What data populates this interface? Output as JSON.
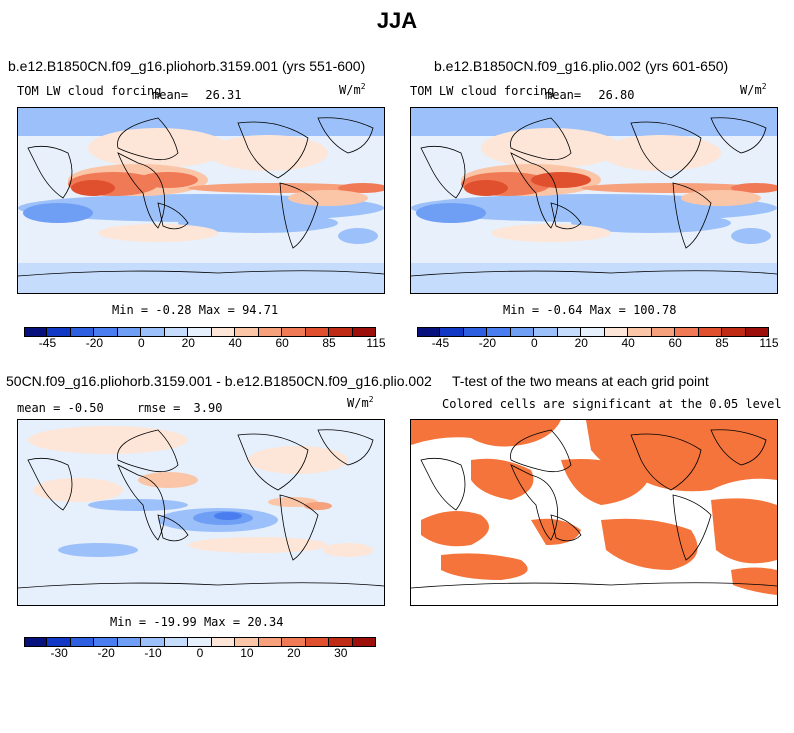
{
  "title": "JJA",
  "panels": {
    "top_left": {
      "title": "b.e12.B1850CN.f09_g16.pliohorb.3159.001 (yrs 551-600)",
      "variable": "TOM LW cloud forcing",
      "mean_label": "mean=",
      "mean_value": "26.31",
      "units": "W/m",
      "units_exp": "2",
      "min_label": "Min =",
      "min_value": "-0.28",
      "max_label": "Max =",
      "max_value": "94.71"
    },
    "top_right": {
      "title": "b.e12.B1850CN.f09_g16.plio.002 (yrs 601-650)",
      "variable": "TOM LW cloud forcing",
      "mean_label": "mean=",
      "mean_value": "26.80",
      "units": "W/m",
      "units_exp": "2",
      "min_label": "Min =",
      "min_value": "-0.64",
      "max_label": "Max =",
      "max_value": "100.78"
    },
    "bottom_left": {
      "title": "50CN.f09_g16.pliohorb.3159.001 - b.e12.B1850CN.f09_g16.plio.002",
      "mean_label": "mean =",
      "mean_value": "-0.50",
      "rmse_label": "rmse =",
      "rmse_value": "3.90",
      "units": "W/m",
      "units_exp": "2",
      "min_label": "Min =",
      "min_value": "-19.99",
      "max_label": "Max =",
      "max_value": "20.34"
    },
    "bottom_right": {
      "title": "T-test of the two means at each grid point",
      "subtitle": "Colored cells are significant at the 0.05 level",
      "significant_color": "#f4743b"
    }
  },
  "colorbars": {
    "top": {
      "colors": [
        "#08127d",
        "#1238c6",
        "#2d5fe0",
        "#4a7df0",
        "#6f9ef5",
        "#9cc0fa",
        "#c6dcfc",
        "#e6effc",
        "#fde6d7",
        "#fbc6a8",
        "#f7a07c",
        "#f07a55",
        "#e0502e",
        "#c02b15",
        "#9c0f0b"
      ],
      "tick_labels": [
        "-45",
        "-20",
        "0",
        "20",
        "40",
        "60",
        "85",
        "115"
      ]
    },
    "bottom": {
      "colors": [
        "#08127d",
        "#1238c6",
        "#2d5fe0",
        "#4a7df0",
        "#6f9ef5",
        "#9cc0fa",
        "#c6dcfc",
        "#e6effc",
        "#fde6d7",
        "#fbc6a8",
        "#f7a07c",
        "#f07a55",
        "#e0502e",
        "#c02b15",
        "#9c0f0b"
      ],
      "tick_labels": [
        "-30",
        "-20",
        "-10",
        "0",
        "10",
        "20",
        "30"
      ]
    }
  },
  "chart_data": [
    {
      "type": "heatmap",
      "title": "b.e12.B1850CN.f09_g16.pliohorb.3159.001 (yrs 551-600)",
      "variable": "TOM LW cloud forcing",
      "units": "W/m2",
      "mean": 26.31,
      "min": -0.28,
      "max": 94.71,
      "colorbar_ticks": [
        -45,
        -20,
        0,
        20,
        40,
        60,
        85,
        115
      ]
    },
    {
      "type": "heatmap",
      "title": "b.e12.B1850CN.f09_g16.plio.002 (yrs 601-650)",
      "variable": "TOM LW cloud forcing",
      "units": "W/m2",
      "mean": 26.8,
      "min": -0.64,
      "max": 100.78,
      "colorbar_ticks": [
        -45,
        -20,
        0,
        20,
        40,
        60,
        85,
        115
      ]
    },
    {
      "type": "heatmap",
      "title": "50CN.f09_g16.pliohorb.3159.001 - b.e12.B1850CN.f09_g16.plio.002",
      "units": "W/m2",
      "mean": -0.5,
      "rmse": 3.9,
      "min": -19.99,
      "max": 20.34,
      "colorbar_ticks": [
        -30,
        -20,
        -10,
        0,
        10,
        20,
        30
      ]
    },
    {
      "type": "heatmap",
      "title": "T-test of the two means at each grid point",
      "subtitle": "Colored cells are significant at the 0.05 level"
    }
  ]
}
